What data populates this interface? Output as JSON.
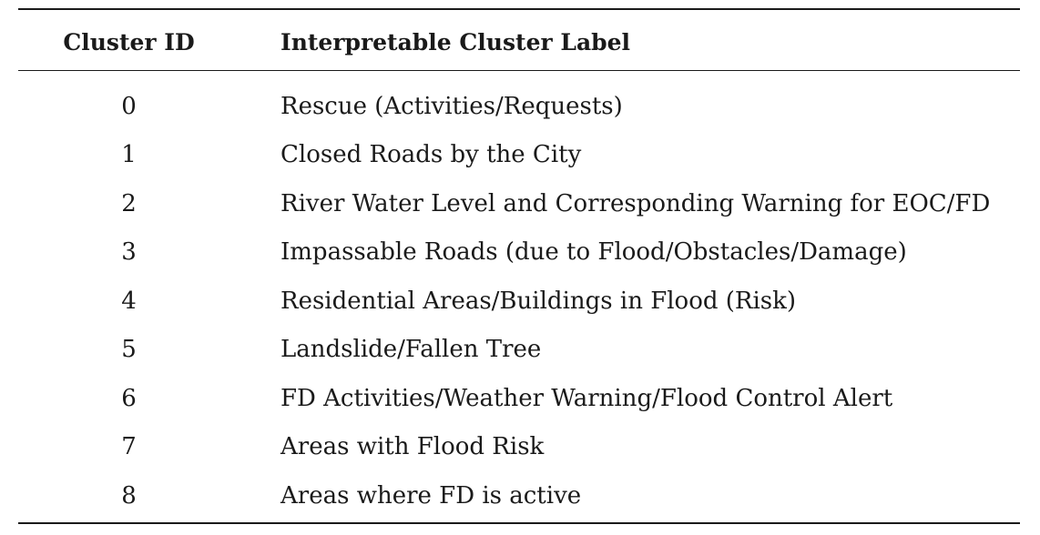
{
  "table": {
    "headers": {
      "cluster_id": "Cluster ID",
      "label": "Interpretable Cluster Label"
    },
    "rows": [
      {
        "id": "0",
        "label": "Rescue (Activities/Requests)"
      },
      {
        "id": "1",
        "label": "Closed Roads by the City"
      },
      {
        "id": "2",
        "label": "River Water Level and Corresponding Warning for EOC/FD"
      },
      {
        "id": "3",
        "label": "Impassable Roads (due to Flood/Obstacles/Damage)"
      },
      {
        "id": "4",
        "label": "Residential Areas/Buildings in Flood (Risk)"
      },
      {
        "id": "5",
        "label": "Landslide/Fallen Tree"
      },
      {
        "id": "6",
        "label": "FD Activities/Weather Warning/Flood Control Alert"
      },
      {
        "id": "7",
        "label": "Areas with Flood Risk"
      },
      {
        "id": "8",
        "label": "Areas where FD is active"
      }
    ]
  }
}
